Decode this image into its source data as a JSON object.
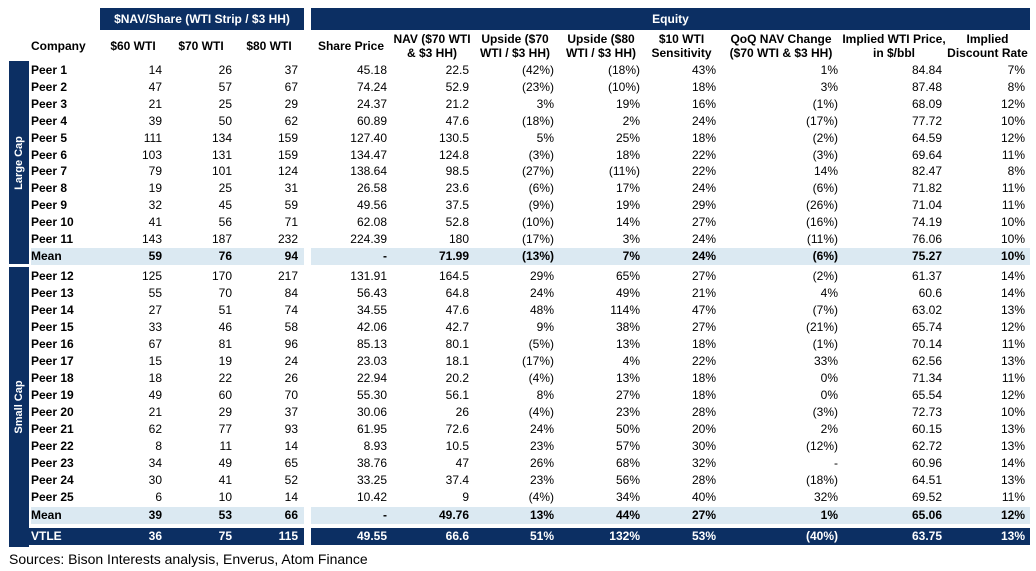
{
  "headers": {
    "nav_group": "$NAV/Share (WTI Strip / $3 HH)",
    "equity_group": "Equity",
    "company": "Company",
    "columns": [
      "$60 WTI",
      "$70 WTI",
      "$80 WTI",
      "Share Price",
      "NAV ($70 WTI & $3 HH)",
      "Upside ($70 WTI / $3 HH)",
      "Upside ($80 WTI / $3 HH)",
      "$10 WTI Sensitivity",
      "QoQ NAV Change ($70 WTI & $3 HH)",
      "Implied WTI Price, in $/bbl",
      "Implied Discount Rate"
    ]
  },
  "large_cap": {
    "label": "Large Cap",
    "rows": [
      [
        "Peer 1",
        "14",
        "26",
        "37",
        "45.18",
        "22.5",
        "(42%)",
        "(18%)",
        "43%",
        "1%",
        "84.84",
        "7%"
      ],
      [
        "Peer 2",
        "47",
        "57",
        "67",
        "74.24",
        "52.9",
        "(23%)",
        "(10%)",
        "18%",
        "3%",
        "87.48",
        "8%"
      ],
      [
        "Peer 3",
        "21",
        "25",
        "29",
        "24.37",
        "21.2",
        "3%",
        "19%",
        "16%",
        "(1%)",
        "68.09",
        "12%"
      ],
      [
        "Peer 4",
        "39",
        "50",
        "62",
        "60.89",
        "47.6",
        "(18%)",
        "2%",
        "24%",
        "(17%)",
        "77.72",
        "10%"
      ],
      [
        "Peer 5",
        "111",
        "134",
        "159",
        "127.40",
        "130.5",
        "5%",
        "25%",
        "18%",
        "(2%)",
        "64.59",
        "12%"
      ],
      [
        "Peer 6",
        "103",
        "131",
        "159",
        "134.47",
        "124.8",
        "(3%)",
        "18%",
        "22%",
        "(3%)",
        "69.64",
        "11%"
      ],
      [
        "Peer 7",
        "79",
        "101",
        "124",
        "138.64",
        "98.5",
        "(27%)",
        "(11%)",
        "22%",
        "14%",
        "82.47",
        "8%"
      ],
      [
        "Peer 8",
        "19",
        "25",
        "31",
        "26.58",
        "23.6",
        "(6%)",
        "17%",
        "24%",
        "(6%)",
        "71.82",
        "11%"
      ],
      [
        "Peer 9",
        "32",
        "45",
        "59",
        "49.56",
        "37.5",
        "(9%)",
        "19%",
        "29%",
        "(26%)",
        "71.04",
        "11%"
      ],
      [
        "Peer 10",
        "41",
        "56",
        "71",
        "62.08",
        "52.8",
        "(10%)",
        "14%",
        "27%",
        "(16%)",
        "74.19",
        "10%"
      ],
      [
        "Peer 11",
        "143",
        "187",
        "232",
        "224.39",
        "180",
        "(17%)",
        "3%",
        "24%",
        "(11%)",
        "76.06",
        "10%"
      ]
    ],
    "mean": [
      "Mean",
      "59",
      "76",
      "94",
      "-",
      "71.99",
      "(13%)",
      "7%",
      "24%",
      "(6%)",
      "75.27",
      "10%"
    ]
  },
  "small_cap": {
    "label": "Small Cap",
    "rows": [
      [
        "Peer 12",
        "125",
        "170",
        "217",
        "131.91",
        "164.5",
        "29%",
        "65%",
        "27%",
        "(2%)",
        "61.37",
        "14%"
      ],
      [
        "Peer 13",
        "55",
        "70",
        "84",
        "56.43",
        "64.8",
        "24%",
        "49%",
        "21%",
        "4%",
        "60.6",
        "14%"
      ],
      [
        "Peer 14",
        "27",
        "51",
        "74",
        "34.55",
        "47.6",
        "48%",
        "114%",
        "47%",
        "(7%)",
        "63.02",
        "13%"
      ],
      [
        "Peer 15",
        "33",
        "46",
        "58",
        "42.06",
        "42.7",
        "9%",
        "38%",
        "27%",
        "(21%)",
        "65.74",
        "12%"
      ],
      [
        "Peer 16",
        "67",
        "81",
        "96",
        "85.13",
        "80.1",
        "(5%)",
        "13%",
        "18%",
        "(1%)",
        "70.14",
        "11%"
      ],
      [
        "Peer 17",
        "15",
        "19",
        "24",
        "23.03",
        "18.1",
        "(17%)",
        "4%",
        "22%",
        "33%",
        "62.56",
        "13%"
      ],
      [
        "Peer 18",
        "18",
        "22",
        "26",
        "22.94",
        "20.2",
        "(4%)",
        "13%",
        "18%",
        "0%",
        "71.34",
        "11%"
      ],
      [
        "Peer 19",
        "49",
        "60",
        "70",
        "55.30",
        "56.1",
        "8%",
        "27%",
        "18%",
        "0%",
        "65.54",
        "12%"
      ],
      [
        "Peer 20",
        "21",
        "29",
        "37",
        "30.06",
        "26",
        "(4%)",
        "23%",
        "28%",
        "(3%)",
        "72.73",
        "10%"
      ],
      [
        "Peer 21",
        "62",
        "77",
        "93",
        "61.95",
        "72.6",
        "24%",
        "50%",
        "20%",
        "2%",
        "60.15",
        "13%"
      ],
      [
        "Peer 22",
        "8",
        "11",
        "14",
        "8.93",
        "10.5",
        "23%",
        "57%",
        "30%",
        "(12%)",
        "62.72",
        "13%"
      ],
      [
        "Peer 23",
        "34",
        "49",
        "65",
        "38.76",
        "47",
        "26%",
        "68%",
        "32%",
        "-",
        "60.96",
        "14%"
      ],
      [
        "Peer 24",
        "30",
        "41",
        "52",
        "33.25",
        "37.4",
        "23%",
        "56%",
        "28%",
        "(18%)",
        "64.51",
        "13%"
      ],
      [
        "Peer 25",
        "6",
        "10",
        "14",
        "10.42",
        "9",
        "(4%)",
        "34%",
        "40%",
        "32%",
        "69.52",
        "11%"
      ]
    ],
    "mean": [
      "Mean",
      "39",
      "53",
      "66",
      "-",
      "49.76",
      "13%",
      "44%",
      "27%",
      "1%",
      "65.06",
      "12%"
    ]
  },
  "vtle": [
    "VTLE",
    "36",
    "75",
    "115",
    "49.55",
    "66.6",
    "51%",
    "132%",
    "53%",
    "(40%)",
    "63.75",
    "13%"
  ],
  "source": "Sources: Bison Interests analysis, Enverus, Atom Finance",
  "colors": {
    "navy": "#0c2f63",
    "mean_band": "#dbe9f2"
  }
}
